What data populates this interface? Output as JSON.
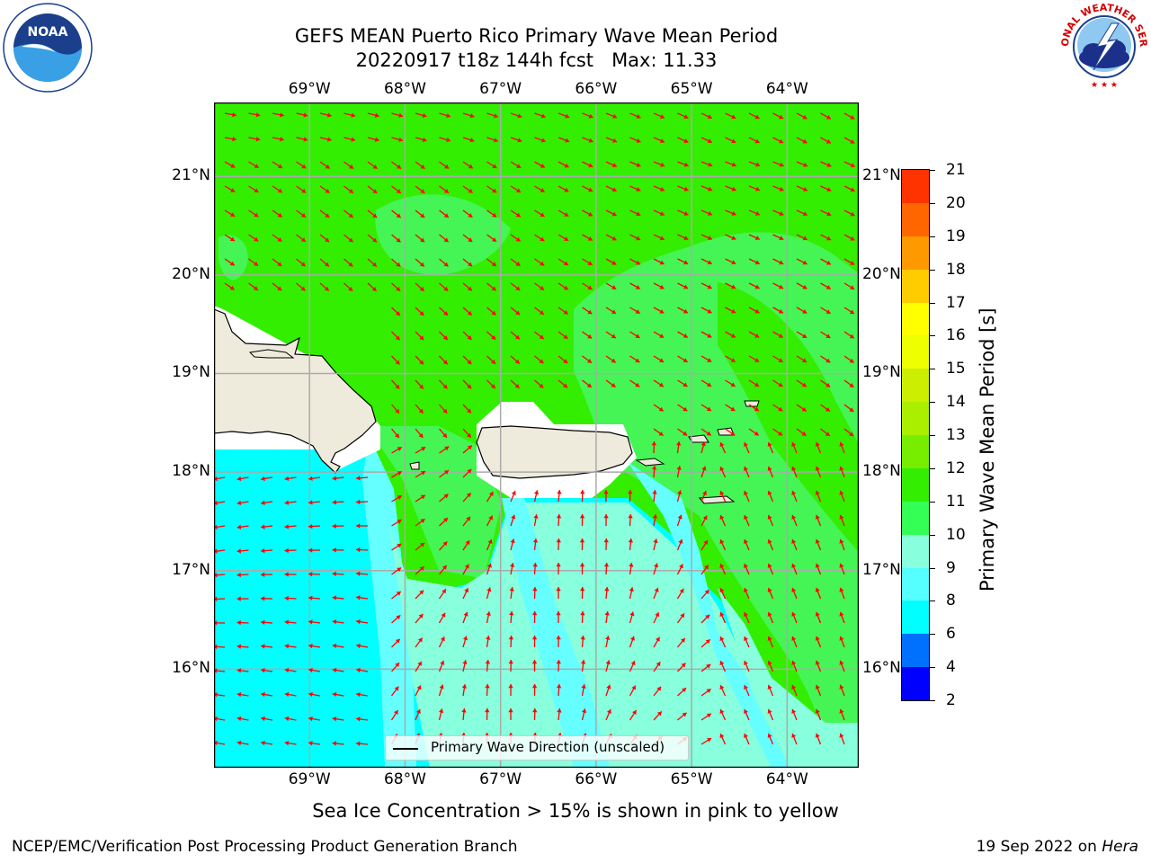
{
  "header": {
    "title_line1": "GEFS MEAN Puerto Rico Primary Wave Mean Period",
    "title_line2": "20220917 t18z 144h fcst   Max: 11.33"
  },
  "logos": {
    "noaa_text": "NOAA",
    "noaa_ring": "NATIONAL OCEANIC AND ATMOSPHERIC ADMINISTRATION · U.S. DEPARTMENT OF COMMERCE",
    "nws_ring": "NATIONAL WEATHER SERVICE"
  },
  "map": {
    "lon_labels": [
      "69°W",
      "68°W",
      "67°W",
      "66°W",
      "65°W",
      "64°W"
    ],
    "lat_labels": [
      "21°N",
      "20°N",
      "19°N",
      "18°N",
      "17°N",
      "16°N"
    ],
    "lon_range": [
      -70.0,
      -63.25
    ],
    "lat_range": [
      15.0,
      21.75
    ],
    "legend_label": "Primary Wave Direction (unscaled)",
    "arrow_color": "#ff0000",
    "land_color": "#efebdc"
  },
  "colorbar": {
    "title": "Primary Wave Mean Period [s]",
    "levels": [
      "2",
      "4",
      "6",
      "8",
      "9",
      "10",
      "11",
      "12",
      "13",
      "14",
      "15",
      "16",
      "17",
      "18",
      "19",
      "20",
      "21"
    ],
    "colors": [
      "#0000ff",
      "#0070ff",
      "#00ffff",
      "#55ffff",
      "#88ffdd",
      "#33ff55",
      "#33ee00",
      "#77ee00",
      "#aaee00",
      "#ccee00",
      "#eeff00",
      "#ffff00",
      "#ffcc00",
      "#ff9900",
      "#ff6600",
      "#ff3300",
      "#ff0000"
    ]
  },
  "notes": {
    "ice": "Sea Ice Concentration > 15% is shown in pink to yellow"
  },
  "footer": {
    "left": "NCEP/EMC/Verification Post Processing Product Generation Branch",
    "right_date": "19 Sep 2022 on",
    "right_host": "Hera"
  }
}
